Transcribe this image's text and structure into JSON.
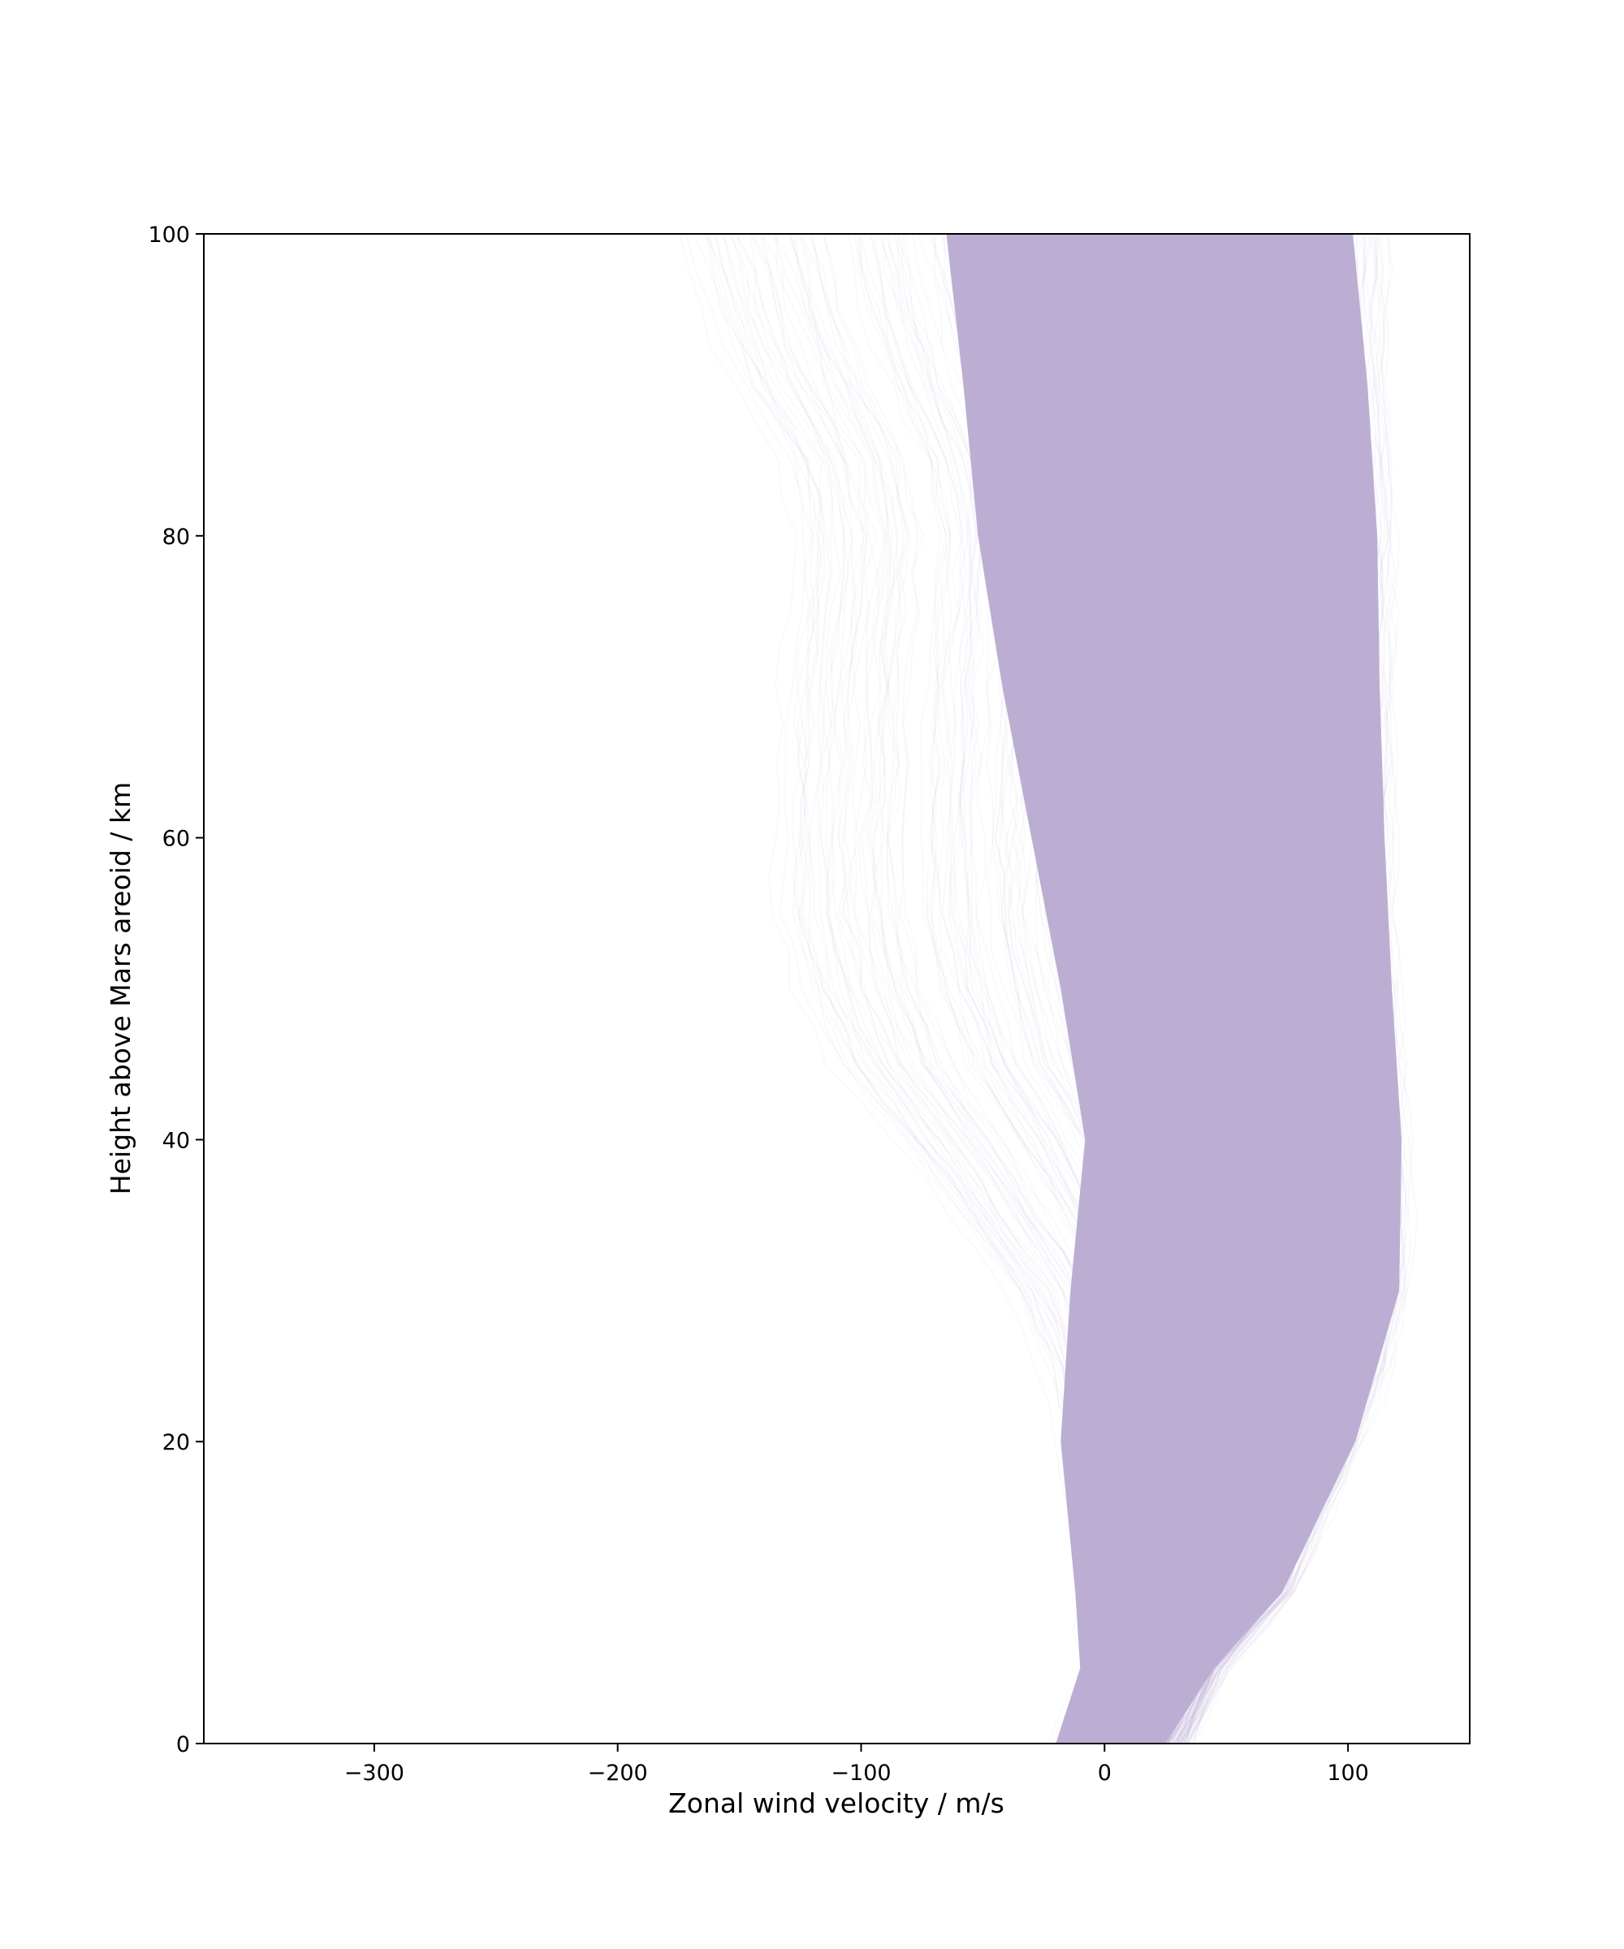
{
  "chart_data": {
    "type": "line",
    "xlabel": "Zonal wind velocity / m/s",
    "ylabel": "Height above Mars areoid / km",
    "xlim": [
      -370,
      150
    ],
    "ylim": [
      0,
      100
    ],
    "xticks": [
      -300,
      -200,
      -100,
      0,
      100
    ],
    "xtick_labels": [
      "−300",
      "−200",
      "−100",
      "0",
      "100"
    ],
    "yticks": [
      0,
      20,
      40,
      60,
      80,
      100
    ],
    "ytick_labels": [
      "0",
      "20",
      "40",
      "60",
      "80",
      "100"
    ],
    "grid": false,
    "legend": "none",
    "series_color": "#9b84bd",
    "series_opacity": 0.05,
    "envelope": {
      "height": [
        0,
        5,
        10,
        20,
        25,
        30,
        35,
        40,
        45,
        50,
        55,
        60,
        65,
        70,
        75,
        80,
        85,
        90,
        95,
        100
      ],
      "min_velocity": [
        -25,
        -12,
        -15,
        -25,
        -35,
        -50,
        -75,
        -100,
        -128,
        -143,
        -152,
        -152,
        -150,
        -150,
        -146,
        -144,
        -150,
        -170,
        -185,
        -195
      ],
      "max_velocity": [
        35,
        50,
        78,
        106,
        118,
        125,
        127,
        126,
        124,
        123,
        121,
        121,
        121,
        121,
        121,
        121,
        120,
        118,
        118,
        118
      ]
    },
    "dense_core": {
      "height": [
        0,
        5,
        10,
        20,
        30,
        40,
        50,
        60,
        70,
        80,
        90,
        100
      ],
      "left_velocity": [
        -20,
        -10,
        -12,
        -18,
        -14,
        -8,
        -18,
        -30,
        -42,
        -52,
        -58,
        -65
      ],
      "right_velocity": [
        25,
        45,
        73,
        103,
        121,
        122,
        118,
        115,
        113,
        112,
        108,
        102
      ]
    }
  }
}
